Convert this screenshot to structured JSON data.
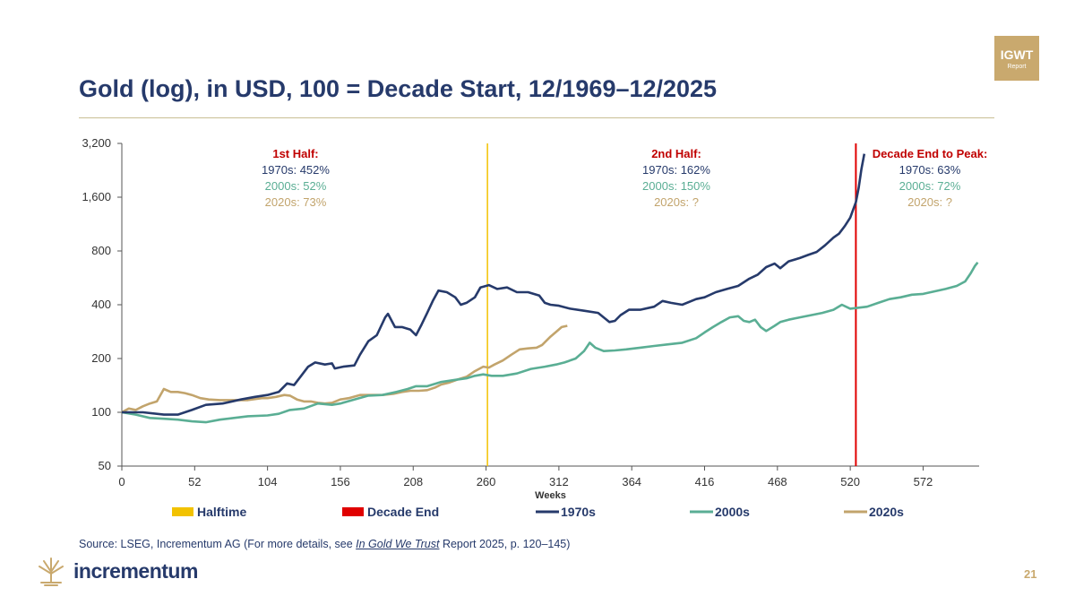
{
  "badge": {
    "line1": "IGWT",
    "line2": "Report"
  },
  "title": "Gold (log), in USD, 100 = Decade Start, 12/1969–12/2025",
  "source": {
    "prefix": "Source: LSEG, Incrementum AG (For more details, see ",
    "italic": "In Gold We Trust",
    "suffix": " Report 2025, p. 120–145)"
  },
  "logo_text": "incrementum",
  "page_number": "21",
  "colors": {
    "halftime": "#f2c200",
    "decade_end": "#e00000",
    "s1970": "#263a6b",
    "s2000": "#5aae94",
    "s2020": "#c2a46c",
    "annotation_heading": "#c00000",
    "title": "#263a6b",
    "gold": "#c9a96e"
  },
  "chart_data": {
    "type": "line",
    "xlabel": "Weeks",
    "ylabel": "",
    "xlim": [
      0,
      612
    ],
    "ylim": [
      50,
      3200
    ],
    "yscale": "log",
    "x_ticks": [
      0,
      52,
      104,
      156,
      208,
      260,
      312,
      364,
      416,
      468,
      520,
      572
    ],
    "y_ticks": [
      50,
      100,
      200,
      400,
      800,
      1600,
      3200
    ],
    "y_tick_labels": [
      "50",
      "100",
      "200",
      "400",
      "800",
      "1,600",
      "3,200"
    ],
    "markers": [
      {
        "name": "Halftime",
        "x": 261
      },
      {
        "name": "Decade End",
        "x": 524
      }
    ],
    "annotations": [
      {
        "heading": "1st Half:",
        "lines": [
          "1970s: 452%",
          "2000s: 52%",
          "2020s: 73%"
        ]
      },
      {
        "heading": "2nd Half:",
        "lines": [
          "1970s: 162%",
          "2000s: 150%",
          "2020s: ?"
        ]
      },
      {
        "heading": "Decade End to Peak:",
        "lines": [
          "1970s: 63%",
          "2000s: 72%",
          "2020s: ?"
        ]
      }
    ],
    "legend": [
      "Halftime",
      "Decade End",
      "1970s",
      "2000s",
      "2020s"
    ],
    "legend_position": "bottom",
    "series": [
      {
        "name": "1970s",
        "points": [
          [
            0,
            100
          ],
          [
            15,
            100
          ],
          [
            30,
            97
          ],
          [
            40,
            97
          ],
          [
            50,
            103
          ],
          [
            60,
            110
          ],
          [
            72,
            112
          ],
          [
            85,
            118
          ],
          [
            95,
            122
          ],
          [
            104,
            125
          ],
          [
            112,
            130
          ],
          [
            118,
            145
          ],
          [
            123,
            142
          ],
          [
            128,
            160
          ],
          [
            133,
            180
          ],
          [
            138,
            190
          ],
          [
            145,
            185
          ],
          [
            150,
            188
          ],
          [
            152,
            176
          ],
          [
            158,
            180
          ],
          [
            166,
            183
          ],
          [
            170,
            210
          ],
          [
            176,
            250
          ],
          [
            182,
            270
          ],
          [
            188,
            340
          ],
          [
            190,
            356
          ],
          [
            195,
            300
          ],
          [
            200,
            300
          ],
          [
            206,
            290
          ],
          [
            210,
            270
          ],
          [
            214,
            310
          ],
          [
            218,
            360
          ],
          [
            222,
            420
          ],
          [
            226,
            480
          ],
          [
            232,
            470
          ],
          [
            238,
            440
          ],
          [
            242,
            400
          ],
          [
            246,
            410
          ],
          [
            252,
            440
          ],
          [
            256,
            500
          ],
          [
            262,
            515
          ],
          [
            268,
            490
          ],
          [
            275,
            500
          ],
          [
            282,
            470
          ],
          [
            290,
            470
          ],
          [
            298,
            450
          ],
          [
            302,
            410
          ],
          [
            306,
            400
          ],
          [
            312,
            395
          ],
          [
            320,
            380
          ],
          [
            330,
            370
          ],
          [
            340,
            360
          ],
          [
            348,
            320
          ],
          [
            352,
            325
          ],
          [
            356,
            350
          ],
          [
            362,
            375
          ],
          [
            370,
            375
          ],
          [
            380,
            390
          ],
          [
            386,
            420
          ],
          [
            392,
            410
          ],
          [
            400,
            400
          ],
          [
            410,
            430
          ],
          [
            416,
            440
          ],
          [
            424,
            470
          ],
          [
            432,
            490
          ],
          [
            440,
            510
          ],
          [
            448,
            560
          ],
          [
            454,
            590
          ],
          [
            460,
            650
          ],
          [
            466,
            680
          ],
          [
            470,
            640
          ],
          [
            476,
            700
          ],
          [
            484,
            730
          ],
          [
            490,
            760
          ],
          [
            496,
            790
          ],
          [
            502,
            860
          ],
          [
            508,
            950
          ],
          [
            512,
            1000
          ],
          [
            516,
            1100
          ],
          [
            520,
            1230
          ],
          [
            524,
            1500
          ],
          [
            526,
            1800
          ],
          [
            528,
            2300
          ],
          [
            530,
            2800
          ]
        ]
      },
      {
        "name": "2000s",
        "points": [
          [
            0,
            100
          ],
          [
            10,
            97
          ],
          [
            20,
            93
          ],
          [
            30,
            92
          ],
          [
            40,
            91
          ],
          [
            50,
            89
          ],
          [
            60,
            88
          ],
          [
            70,
            91
          ],
          [
            80,
            93
          ],
          [
            90,
            95
          ],
          [
            104,
            96
          ],
          [
            112,
            98
          ],
          [
            120,
            103
          ],
          [
            130,
            105
          ],
          [
            140,
            112
          ],
          [
            150,
            110
          ],
          [
            156,
            112
          ],
          [
            166,
            118
          ],
          [
            176,
            124
          ],
          [
            186,
            125
          ],
          [
            196,
            130
          ],
          [
            204,
            135
          ],
          [
            210,
            140
          ],
          [
            218,
            140
          ],
          [
            228,
            148
          ],
          [
            238,
            152
          ],
          [
            246,
            155
          ],
          [
            252,
            160
          ],
          [
            258,
            163
          ],
          [
            264,
            160
          ],
          [
            272,
            160
          ],
          [
            282,
            165
          ],
          [
            292,
            175
          ],
          [
            302,
            180
          ],
          [
            310,
            185
          ],
          [
            316,
            190
          ],
          [
            324,
            200
          ],
          [
            330,
            220
          ],
          [
            334,
            245
          ],
          [
            338,
            230
          ],
          [
            344,
            220
          ],
          [
            352,
            222
          ],
          [
            360,
            225
          ],
          [
            370,
            230
          ],
          [
            380,
            235
          ],
          [
            390,
            240
          ],
          [
            400,
            245
          ],
          [
            410,
            260
          ],
          [
            416,
            280
          ],
          [
            422,
            300
          ],
          [
            428,
            320
          ],
          [
            434,
            340
          ],
          [
            440,
            345
          ],
          [
            444,
            325
          ],
          [
            448,
            320
          ],
          [
            452,
            330
          ],
          [
            456,
            300
          ],
          [
            460,
            285
          ],
          [
            466,
            305
          ],
          [
            470,
            320
          ],
          [
            476,
            330
          ],
          [
            484,
            340
          ],
          [
            492,
            350
          ],
          [
            500,
            360
          ],
          [
            508,
            375
          ],
          [
            514,
            400
          ],
          [
            520,
            380
          ],
          [
            526,
            385
          ],
          [
            532,
            390
          ],
          [
            540,
            410
          ],
          [
            548,
            430
          ],
          [
            556,
            440
          ],
          [
            564,
            455
          ],
          [
            572,
            460
          ],
          [
            580,
            475
          ],
          [
            588,
            490
          ],
          [
            596,
            510
          ],
          [
            602,
            540
          ],
          [
            606,
            600
          ],
          [
            609,
            660
          ],
          [
            611,
            690
          ]
        ]
      },
      {
        "name": "2020s",
        "points": [
          [
            0,
            100
          ],
          [
            5,
            105
          ],
          [
            10,
            103
          ],
          [
            15,
            108
          ],
          [
            20,
            112
          ],
          [
            25,
            115
          ],
          [
            30,
            135
          ],
          [
            35,
            130
          ],
          [
            40,
            130
          ],
          [
            45,
            128
          ],
          [
            50,
            125
          ],
          [
            56,
            120
          ],
          [
            62,
            118
          ],
          [
            70,
            117
          ],
          [
            80,
            117
          ],
          [
            90,
            117
          ],
          [
            100,
            120
          ],
          [
            104,
            120
          ],
          [
            110,
            122
          ],
          [
            116,
            125
          ],
          [
            120,
            124
          ],
          [
            125,
            118
          ],
          [
            130,
            115
          ],
          [
            135,
            115
          ],
          [
            140,
            113
          ],
          [
            145,
            112
          ],
          [
            150,
            113
          ],
          [
            156,
            118
          ],
          [
            162,
            120
          ],
          [
            170,
            125
          ],
          [
            178,
            125
          ],
          [
            186,
            125
          ],
          [
            194,
            127
          ],
          [
            200,
            130
          ],
          [
            206,
            132
          ],
          [
            212,
            132
          ],
          [
            218,
            133
          ],
          [
            224,
            138
          ],
          [
            228,
            143
          ],
          [
            234,
            147
          ],
          [
            240,
            153
          ],
          [
            246,
            158
          ],
          [
            252,
            170
          ],
          [
            258,
            180
          ],
          [
            262,
            178
          ],
          [
            266,
            185
          ],
          [
            272,
            195
          ],
          [
            278,
            210
          ],
          [
            284,
            225
          ],
          [
            290,
            228
          ],
          [
            296,
            230
          ],
          [
            300,
            238
          ],
          [
            306,
            265
          ],
          [
            310,
            282
          ],
          [
            314,
            300
          ],
          [
            318,
            305
          ]
        ]
      }
    ]
  }
}
